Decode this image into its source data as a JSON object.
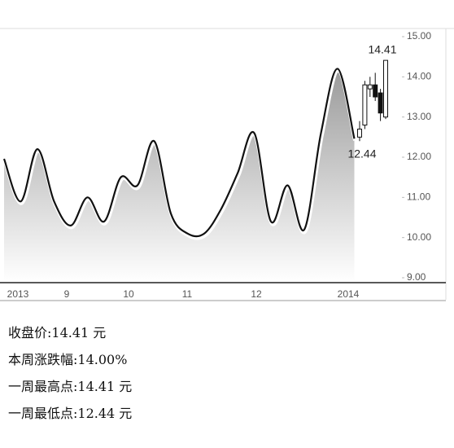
{
  "chart_data": [
    {
      "type": "line",
      "color": "#111111",
      "values": [
        11.96,
        10.9,
        12.2,
        10.9,
        10.3,
        11.0,
        10.4,
        11.5,
        11.3,
        12.4,
        10.6,
        10.1,
        10.1,
        10.7,
        11.6,
        12.6,
        10.4,
        11.3,
        10.2,
        12.6,
        14.2,
        12.46
      ],
      "ylim": [
        9,
        15
      ],
      "yticks": [
        {
          "value": 9,
          "label": "9.00"
        },
        {
          "value": 10,
          "label": "10.00"
        },
        {
          "value": 11,
          "label": "11.00"
        },
        {
          "value": 12,
          "label": "12.00"
        },
        {
          "value": 13,
          "label": "13.00"
        },
        {
          "value": 14,
          "label": "14.00"
        },
        {
          "value": 15,
          "label": "15.00"
        }
      ],
      "x_labels": [
        "2013",
        "9",
        "10",
        "11",
        "12",
        "2014"
      ],
      "annotations": [
        {
          "text": "14.41",
          "value": 14.41
        },
        {
          "text": "12.44",
          "value": 12.44
        }
      ]
    },
    {
      "type": "candlestick",
      "open": [
        12.5,
        12.8,
        13.7,
        13.8,
        13.6,
        13.0
      ],
      "high": [
        12.9,
        13.9,
        14.0,
        14.1,
        13.7,
        14.41
      ],
      "low": [
        12.4,
        12.7,
        13.5,
        13.4,
        12.9,
        12.95
      ],
      "close": [
        12.7,
        13.8,
        13.8,
        13.5,
        13.1,
        14.41
      ]
    }
  ],
  "summary": [
    "收盘价:14.41 元",
    "本周涨跌幅:14.00%",
    "一周最高点:14.41 元",
    "一周最低点:12.44 元"
  ]
}
